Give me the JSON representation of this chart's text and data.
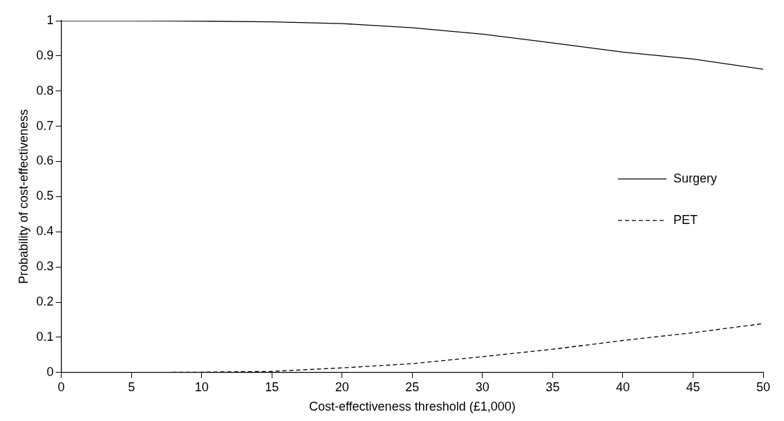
{
  "chart_data": {
    "type": "line",
    "xlabel": "Cost-effectiveness threshold (£1,000)",
    "ylabel": "Probability of cost-effectiveness",
    "x": [
      0,
      5,
      10,
      15,
      20,
      25,
      30,
      35,
      40,
      45,
      50
    ],
    "series": [
      {
        "name": "Surgery",
        "color": "#000000",
        "line_style": "solid",
        "values": [
          1,
          1,
          0.999,
          0.997,
          0.992,
          0.98,
          0.962,
          0.937,
          0.911,
          0.891,
          0.862
        ]
      },
      {
        "name": "PET",
        "color": "#000000",
        "line_style": "dashed",
        "values": [
          0,
          0,
          0.001,
          0.003,
          0.013,
          0.025,
          0.045,
          0.066,
          0.091,
          0.113,
          0.139
        ]
      }
    ],
    "xlim": [
      0,
      50
    ],
    "xticks": [
      0,
      5,
      10,
      15,
      20,
      25,
      30,
      35,
      40,
      45,
      50
    ],
    "ylim": [
      0,
      1
    ],
    "yticks": [
      0,
      0.1,
      0.2,
      0.3,
      0.4,
      0.5,
      0.6,
      0.7,
      0.8,
      0.9,
      1
    ],
    "grid": false,
    "legend": "right",
    "marker": "none"
  }
}
